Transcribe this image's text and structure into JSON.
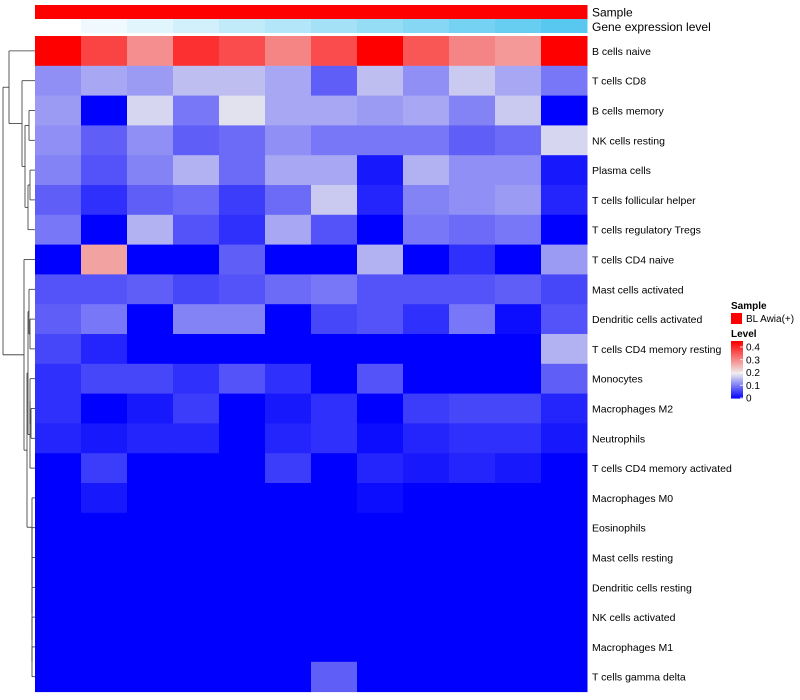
{
  "chart_data": {
    "type": "heatmap",
    "title": "",
    "annotation_tracks": [
      {
        "name": "Sample",
        "color": "#ff0000"
      },
      {
        "name": "Gene expression level",
        "gradient_from": "#ffffff",
        "gradient_to": "#58c8f0"
      }
    ],
    "rows": [
      "B cells naive",
      "T cells CD8",
      "B cells memory",
      "NK cells resting",
      "Plasma cells",
      "T cells follicular helper",
      "T cells regulatory  Tregs",
      "T cells CD4 naive",
      "Mast cells activated",
      "Dendritic cells activated",
      "T cells CD4 memory resting",
      "Monocytes",
      "Macrophages M2",
      "Neutrophils",
      "T cells CD4 memory activated",
      "Macrophages M0",
      "Eosinophils",
      "Mast cells resting",
      "Dendritic cells resting",
      "NK cells activated",
      "Macrophages M1",
      "T cells gamma delta"
    ],
    "n_columns": 12,
    "values": [
      [
        0.45,
        0.38,
        0.3,
        0.4,
        0.37,
        0.31,
        0.37,
        0.45,
        0.36,
        0.31,
        0.29,
        0.45
      ],
      [
        0.12,
        0.14,
        0.13,
        0.16,
        0.16,
        0.14,
        0.08,
        0.16,
        0.12,
        0.17,
        0.14,
        0.1
      ],
      [
        0.13,
        0.0,
        0.18,
        0.1,
        0.19,
        0.14,
        0.14,
        0.13,
        0.14,
        0.11,
        0.17,
        0.0
      ],
      [
        0.12,
        0.08,
        0.12,
        0.08,
        0.09,
        0.12,
        0.1,
        0.1,
        0.1,
        0.08,
        0.09,
        0.18
      ],
      [
        0.11,
        0.07,
        0.11,
        0.15,
        0.09,
        0.14,
        0.14,
        0.02,
        0.15,
        0.12,
        0.12,
        0.02
      ],
      [
        0.08,
        0.04,
        0.08,
        0.09,
        0.05,
        0.09,
        0.17,
        0.03,
        0.11,
        0.12,
        0.13,
        0.03
      ],
      [
        0.1,
        0.0,
        0.15,
        0.07,
        0.04,
        0.14,
        0.07,
        0.0,
        0.1,
        0.09,
        0.1,
        0.0
      ],
      [
        0.0,
        0.28,
        0.0,
        0.0,
        0.08,
        0.0,
        0.0,
        0.15,
        0.0,
        0.04,
        0.0,
        0.13
      ],
      [
        0.07,
        0.07,
        0.08,
        0.06,
        0.07,
        0.09,
        0.1,
        0.07,
        0.07,
        0.07,
        0.08,
        0.06
      ],
      [
        0.08,
        0.1,
        0.0,
        0.11,
        0.11,
        0.0,
        0.06,
        0.07,
        0.04,
        0.1,
        0.01,
        0.07
      ],
      [
        0.06,
        0.03,
        0.0,
        0.0,
        0.0,
        0.0,
        0.0,
        0.0,
        0.0,
        0.0,
        0.0,
        0.15
      ],
      [
        0.04,
        0.06,
        0.06,
        0.04,
        0.07,
        0.04,
        0.0,
        0.07,
        0.0,
        0.0,
        0.0,
        0.08
      ],
      [
        0.04,
        0.0,
        0.02,
        0.05,
        0.0,
        0.02,
        0.04,
        0.0,
        0.05,
        0.06,
        0.06,
        0.03
      ],
      [
        0.03,
        0.02,
        0.03,
        0.03,
        0.0,
        0.03,
        0.04,
        0.01,
        0.03,
        0.04,
        0.04,
        0.02
      ],
      [
        0.0,
        0.05,
        0.0,
        0.0,
        0.0,
        0.05,
        0.0,
        0.03,
        0.02,
        0.03,
        0.02,
        0.0
      ],
      [
        0.0,
        0.02,
        0.0,
        0.0,
        0.0,
        0.0,
        0.0,
        0.01,
        0.0,
        0.0,
        0.0,
        0.0
      ],
      [
        0.0,
        0.0,
        0.0,
        0.0,
        0.0,
        0.0,
        0.0,
        0.0,
        0.0,
        0.0,
        0.0,
        0.0
      ],
      [
        0.0,
        0.0,
        0.0,
        0.0,
        0.0,
        0.0,
        0.0,
        0.0,
        0.0,
        0.0,
        0.0,
        0.0
      ],
      [
        0.0,
        0.0,
        0.0,
        0.0,
        0.0,
        0.0,
        0.0,
        0.0,
        0.0,
        0.0,
        0.0,
        0.0
      ],
      [
        0.0,
        0.0,
        0.0,
        0.0,
        0.0,
        0.0,
        0.0,
        0.0,
        0.0,
        0.0,
        0.0,
        0.0
      ],
      [
        0.0,
        0.0,
        0.0,
        0.0,
        0.0,
        0.0,
        0.0,
        0.0,
        0.0,
        0.0,
        0.0,
        0.0
      ],
      [
        0.0,
        0.0,
        0.0,
        0.0,
        0.0,
        0.0,
        0.08,
        0.0,
        0.0,
        0.0,
        0.0,
        0.0
      ]
    ],
    "color_scale": {
      "min": 0,
      "mid": 0.2,
      "max": 0.45,
      "low_color": "#0000ff",
      "mid_color": "#eeeeee",
      "high_color": "#ff0000"
    },
    "legend": {
      "sample_title": "Sample",
      "sample_label": "BL Awia(+)",
      "sample_color": "#ff0000",
      "level_title": "Level",
      "level_ticks": [
        0.4,
        0.3,
        0.2,
        0.1,
        0
      ]
    },
    "dendrogram": "rows"
  }
}
